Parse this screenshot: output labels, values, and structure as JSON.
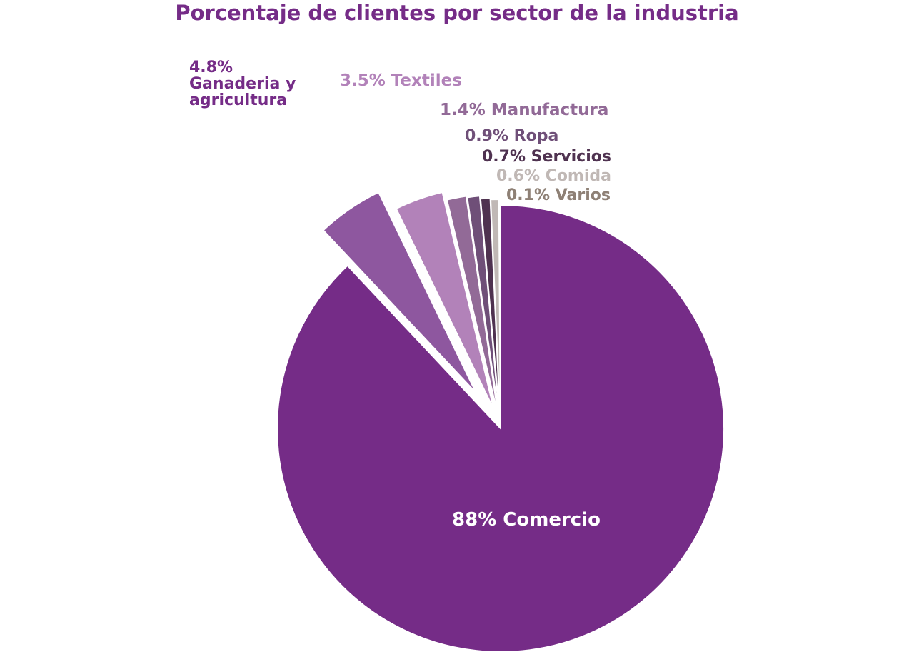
{
  "chart_data": {
    "type": "pie",
    "title": "Porcentaje de clientes por sector de la industria",
    "slices": [
      {
        "pct": "88%",
        "name": "Comercio",
        "value": 88.0,
        "color": "#752C87",
        "label_color": "#FFFFFF"
      },
      {
        "pct": "4.8%",
        "name": "Ganaderia y agricultura",
        "name_lines": [
          "Ganaderia y",
          "agricultura"
        ],
        "value": 4.8,
        "color": "#8E579F",
        "label_color": "#752C87"
      },
      {
        "pct": "3.5%",
        "name": "Textiles",
        "value": 3.5,
        "color": "#B282B9",
        "label_color": "#B282B9"
      },
      {
        "pct": "1.4%",
        "name": "Manufactura",
        "value": 1.4,
        "color": "#926A97",
        "label_color": "#926A97"
      },
      {
        "pct": "0.9%",
        "name": "Ropa",
        "value": 0.9,
        "color": "#6F4F78",
        "label_color": "#6F4F78"
      },
      {
        "pct": "0.7%",
        "name": "Servicios",
        "value": 0.7,
        "color": "#4F3250",
        "label_color": "#4F3250"
      },
      {
        "pct": "0.6%",
        "name": "Comida",
        "value": 0.6,
        "color": "#C0B8B5",
        "label_color": "#C0B8B5"
      },
      {
        "pct": "0.1%",
        "name": "Varios",
        "value": 0.1,
        "color": "#8E8075",
        "label_color": "#8E8075"
      }
    ]
  }
}
